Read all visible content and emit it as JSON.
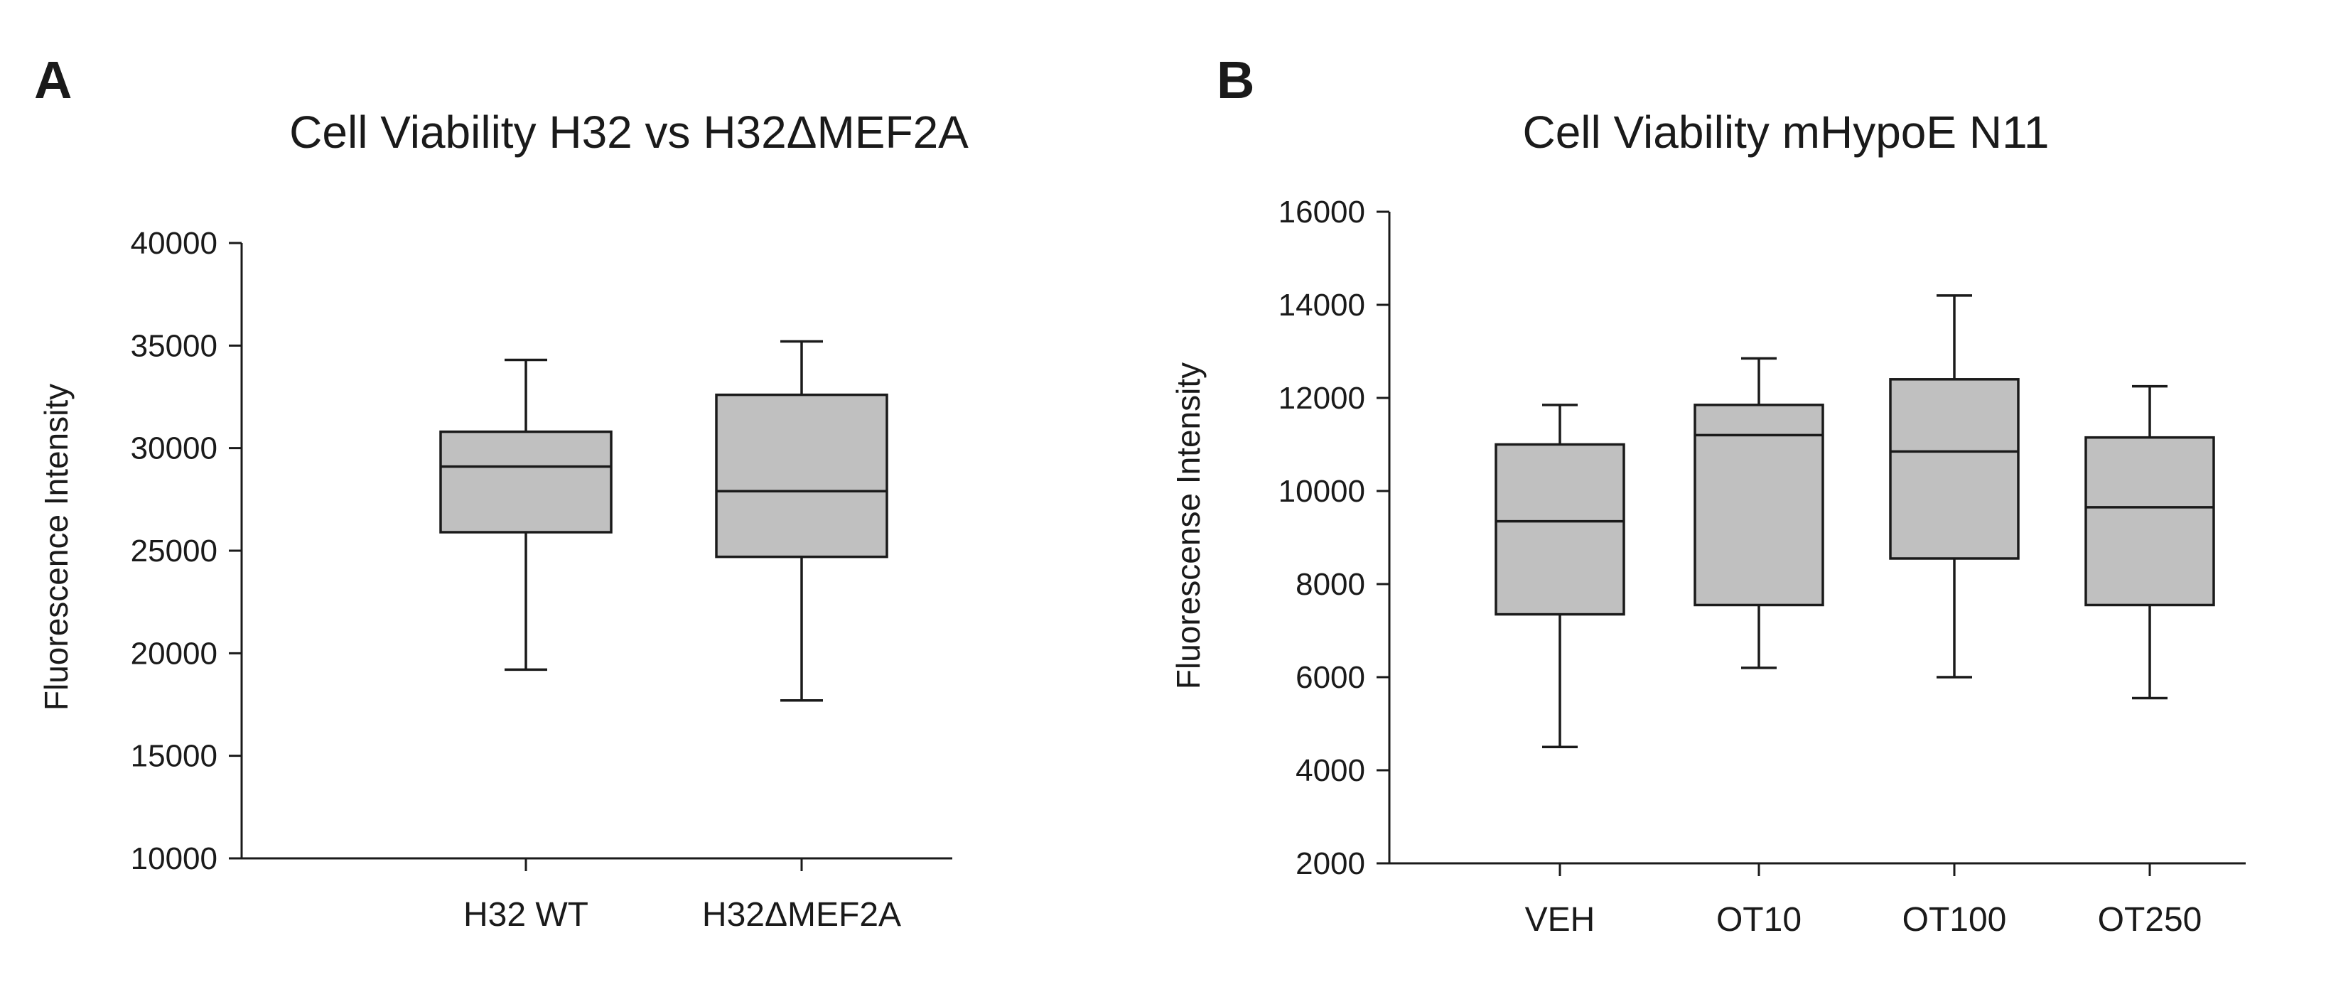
{
  "chart_data": [
    {
      "type": "boxplot",
      "panel_label": "A",
      "title": "Cell Viability H32 vs H32ΔMEF2A",
      "xlabel": "",
      "ylabel": "Fluorescence Intensity",
      "ylim": [
        10000,
        40000
      ],
      "yticks": [
        10000,
        15000,
        20000,
        25000,
        30000,
        35000,
        40000
      ],
      "categories": [
        "H32 WT",
        "H32ΔMEF2A"
      ],
      "boxes": [
        {
          "name": "H32 WT",
          "whisker_low": 19200,
          "q1": 25900,
          "median": 29100,
          "q3": 30800,
          "whisker_high": 34300
        },
        {
          "name": "H32ΔMEF2A",
          "whisker_low": 17700,
          "q1": 24700,
          "median": 27900,
          "q3": 32600,
          "whisker_high": 35200
        }
      ]
    },
    {
      "type": "boxplot",
      "panel_label": "B",
      "title": "Cell Viability mHypoE N11",
      "xlabel": "",
      "ylabel": "Fluorescense Intensity",
      "ylim": [
        2000,
        16000
      ],
      "yticks": [
        2000,
        4000,
        6000,
        8000,
        10000,
        12000,
        14000,
        16000
      ],
      "categories": [
        "VEH",
        "OT10",
        "OT100",
        "OT250"
      ],
      "boxes": [
        {
          "name": "VEH",
          "whisker_low": 4500,
          "q1": 7350,
          "median": 9350,
          "q3": 11000,
          "whisker_high": 11850
        },
        {
          "name": "OT10",
          "whisker_low": 6200,
          "q1": 7550,
          "median": 11200,
          "q3": 11850,
          "whisker_high": 12850
        },
        {
          "name": "OT100",
          "whisker_low": 6000,
          "q1": 8550,
          "median": 10850,
          "q3": 12400,
          "whisker_high": 14200
        },
        {
          "name": "OT250",
          "whisker_low": 5550,
          "q1": 7550,
          "median": 9650,
          "q3": 11150,
          "whisker_high": 12250
        }
      ]
    }
  ]
}
